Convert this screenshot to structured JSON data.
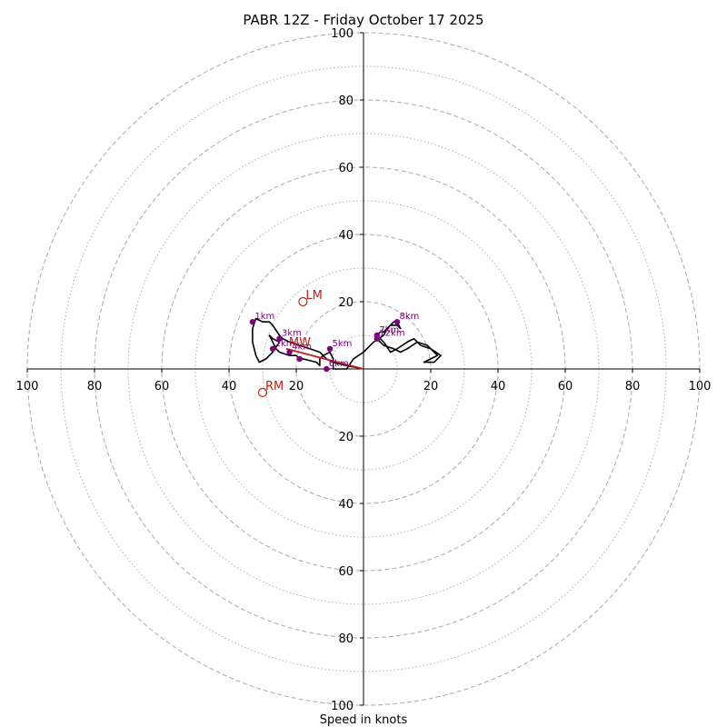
{
  "chart_data": {
    "type": "hodograph",
    "title": "PABR 12Z - Friday October 17 2025",
    "xlabel": "Speed in knots",
    "rlim": [
      0,
      100
    ],
    "rings_major": [
      20,
      40,
      60,
      80,
      100
    ],
    "rings_minor": [
      10,
      30,
      50,
      70,
      90
    ],
    "tick_labels": [
      "20",
      "40",
      "60",
      "80",
      "100"
    ],
    "grid": true,
    "colors": {
      "trace": "#000000",
      "markers": "#800080",
      "motion": "#c0201c",
      "grid": "#b0b0b0"
    },
    "hodograph": {
      "u": [
        0,
        -5,
        -9,
        -11,
        -12,
        -13,
        -16,
        -19,
        -22,
        -24,
        -25,
        -27,
        -28,
        -30,
        -32,
        -33,
        -33,
        -32,
        -31,
        -29,
        -27,
        -25,
        -27,
        -28,
        -27,
        -26,
        -25,
        -22,
        -20,
        -19,
        -18,
        -14,
        -13,
        -13,
        -12,
        -10,
        -9,
        -9,
        -5,
        -3,
        0,
        3,
        6,
        7,
        8,
        9,
        10,
        11,
        10,
        8,
        7,
        6,
        5,
        4,
        4,
        5,
        6,
        9,
        11,
        13,
        16,
        19,
        22,
        20,
        18,
        21,
        23,
        20,
        17,
        15,
        13,
        10,
        8,
        6,
        4
      ],
      "v": [
        0,
        1,
        2,
        3,
        4,
        5,
        6,
        7,
        8,
        9,
        10,
        13,
        14,
        14,
        15,
        12,
        8,
        4,
        2,
        3,
        5,
        8,
        9,
        10,
        8,
        6,
        5,
        4,
        4,
        3,
        3,
        2,
        1,
        3,
        4,
        5,
        3,
        0,
        0,
        3,
        5,
        8,
        10,
        12,
        13,
        14,
        14,
        12,
        13,
        13,
        12,
        11,
        11,
        10,
        9,
        8,
        7,
        6,
        5,
        6,
        8,
        7,
        4,
        3,
        2,
        2,
        4,
        6,
        7,
        9,
        8,
        6,
        5,
        8,
        10
      ]
    },
    "height_markers": [
      {
        "label": "1km",
        "u": -33,
        "v": 14
      },
      {
        "label": "2km",
        "u": -27,
        "v": 6
      },
      {
        "label": "3km",
        "u": -25,
        "v": 9
      },
      {
        "label": "4km",
        "u": -22,
        "v": 5
      },
      {
        "label": "5km",
        "u": -10,
        "v": 6
      },
      {
        "label": "6km",
        "u": -11,
        "v": 0
      },
      {
        "label": "7km",
        "u": 4,
        "v": 10
      },
      {
        "label": "8km",
        "u": 10,
        "v": 14
      },
      {
        "label": "12km",
        "u": 4,
        "v": 9
      },
      {
        "label": "",
        "u": -19,
        "v": 3
      }
    ],
    "storm_motion": [
      {
        "label": "LM",
        "u": -18,
        "v": 20
      },
      {
        "label": "RM",
        "u": -30,
        "v": -7
      },
      {
        "label": "MW",
        "u": -23,
        "v": 6
      }
    ],
    "mean_wind_vector": {
      "u": -23,
      "v": 6
    }
  }
}
